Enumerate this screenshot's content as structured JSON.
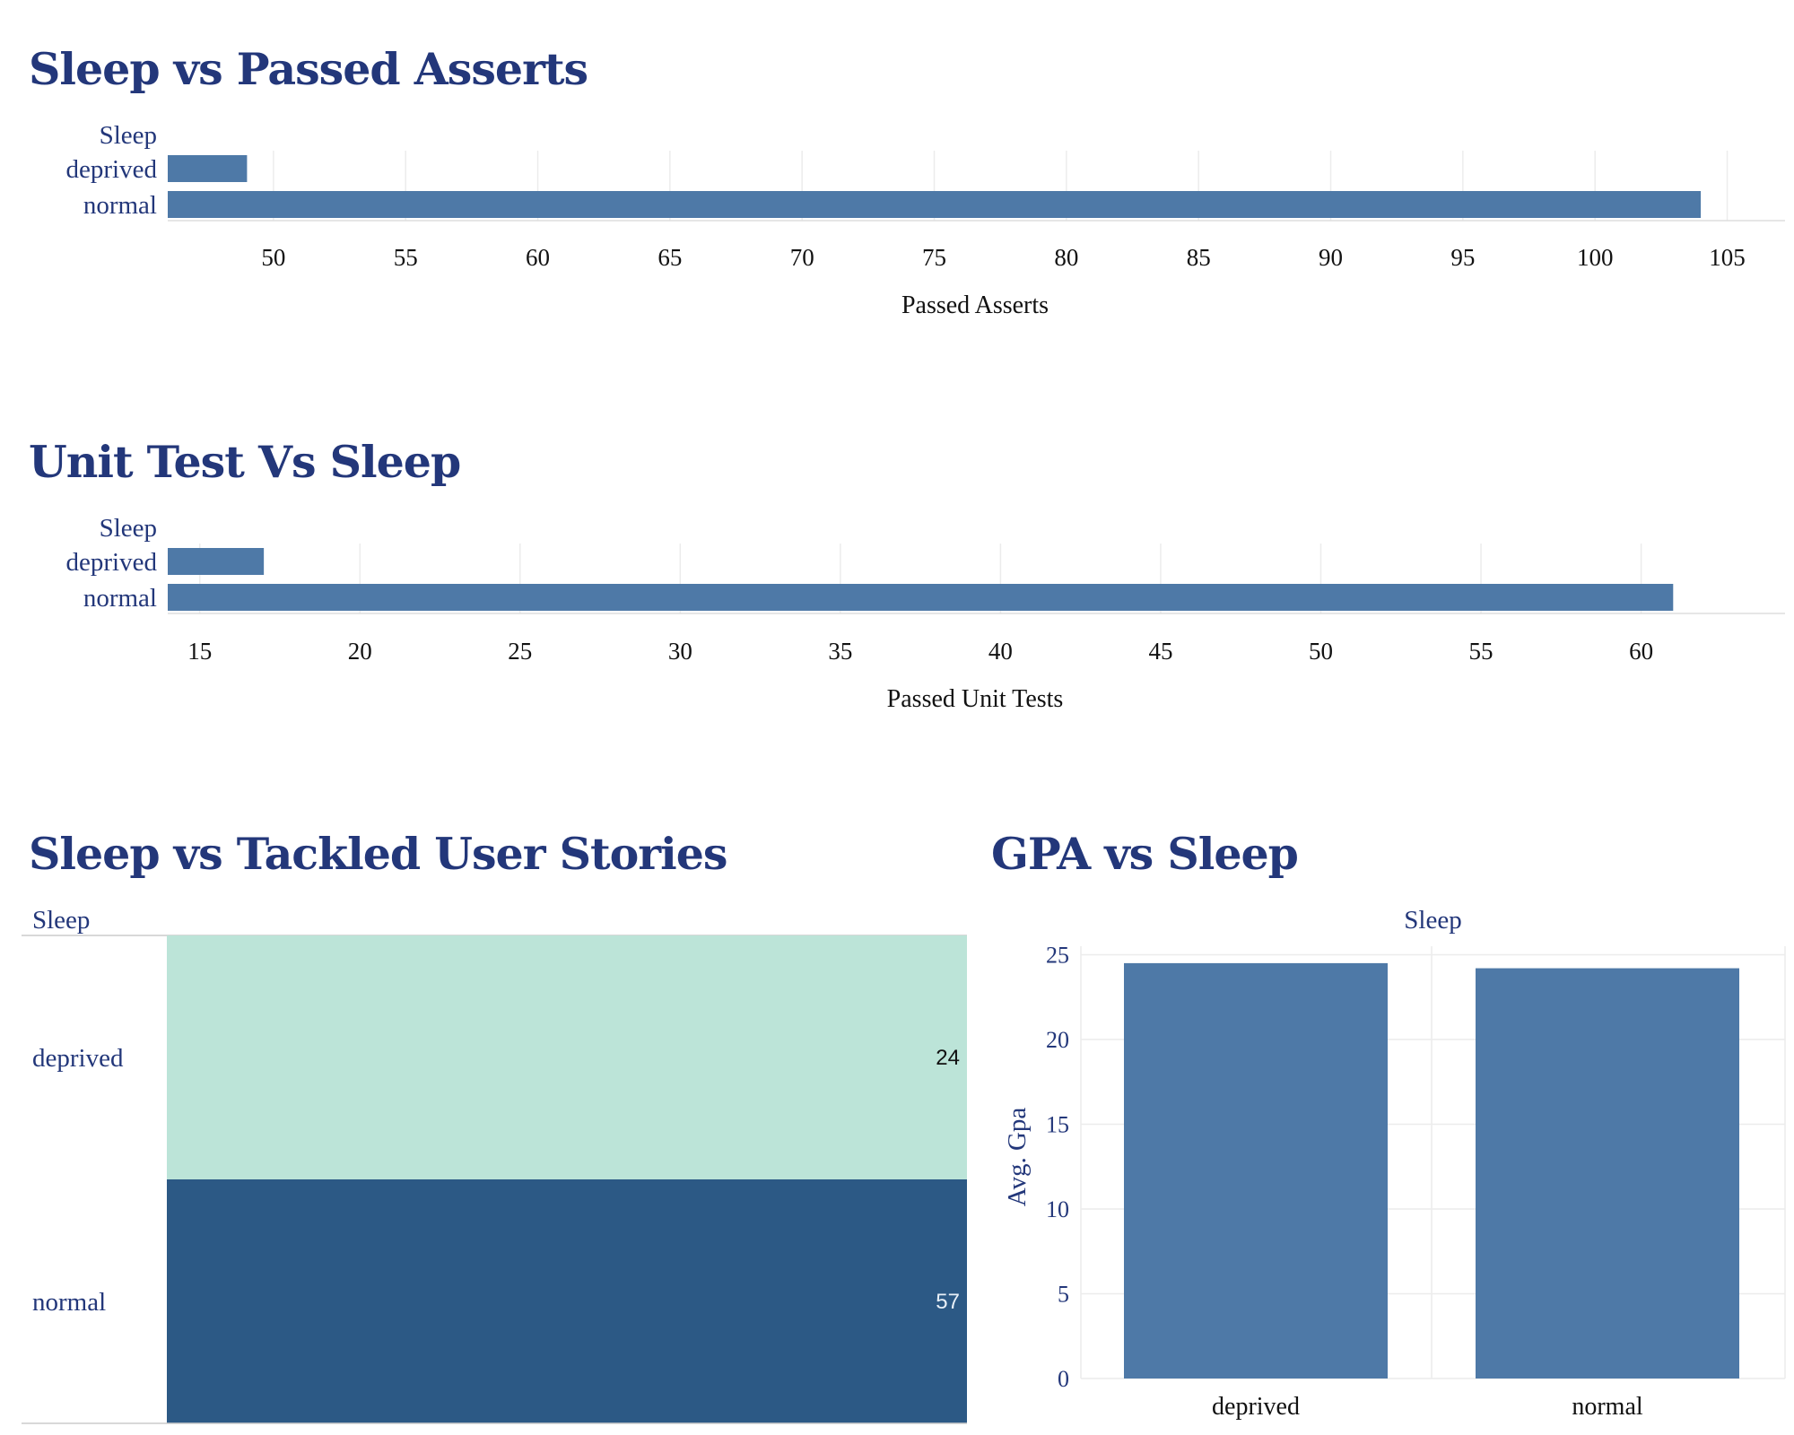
{
  "colors": {
    "title": "#23377a",
    "bar": "#4e79a7",
    "grid": "#ececec",
    "heat_low": "#bce4d8",
    "heat_high": "#2c5985",
    "heat_text_low": "#111111",
    "heat_text_high": "#e8f0f8"
  },
  "chart_data": [
    {
      "type": "bar",
      "orientation": "horizontal",
      "title": "Sleep vs Passed Asserts",
      "dimension_label": "Sleep",
      "categories": [
        "deprived",
        "normal"
      ],
      "values": [
        49,
        104
      ],
      "xlabel": "Passed Asserts",
      "xlim": [
        46,
        106
      ],
      "xticks": [
        50,
        55,
        60,
        65,
        70,
        75,
        80,
        85,
        90,
        95,
        100,
        105
      ],
      "grid": true
    },
    {
      "type": "bar",
      "orientation": "horizontal",
      "title": "Unit Test Vs Sleep",
      "dimension_label": "Sleep",
      "categories": [
        "deprived",
        "normal"
      ],
      "values": [
        17,
        61
      ],
      "xlabel": "Passed Unit Tests",
      "xlim": [
        14,
        62
      ],
      "xticks": [
        15,
        20,
        25,
        30,
        35,
        40,
        45,
        50,
        55,
        60
      ],
      "grid": true
    },
    {
      "type": "heatmap",
      "title": "Sleep vs Tackled User Stories",
      "dimension_label": "Sleep",
      "categories": [
        "deprived",
        "normal"
      ],
      "values": [
        24,
        57
      ]
    },
    {
      "type": "bar",
      "orientation": "vertical",
      "title": "GPA vs Sleep",
      "dimension_label": "Sleep",
      "categories": [
        "deprived",
        "normal"
      ],
      "values": [
        24.5,
        24.2
      ],
      "ylabel": "Avg. Gpa",
      "ylim": [
        0,
        25.5
      ],
      "yticks": [
        0,
        5,
        10,
        15,
        20,
        25
      ],
      "grid": true
    }
  ]
}
